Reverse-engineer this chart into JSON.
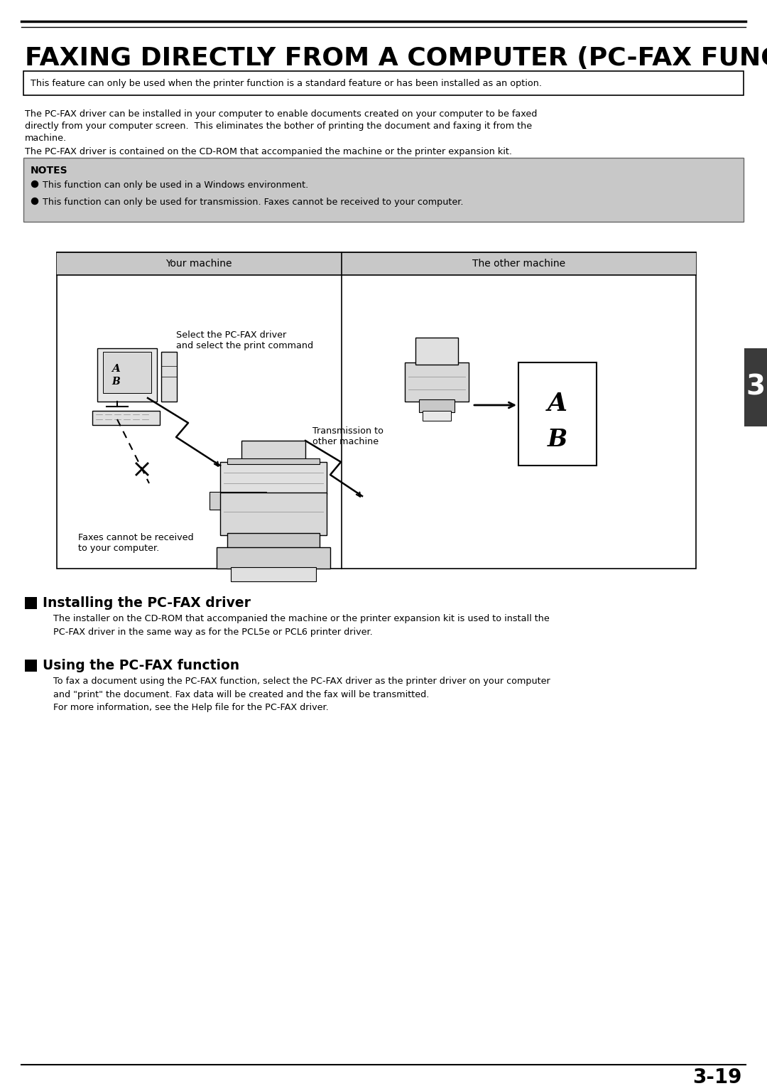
{
  "title": "FAXING DIRECTLY FROM A COMPUTER (PC-FAX FUNCTION)",
  "feature_note": "This feature can only be used when the printer function is a standard feature or has been installed as an option.",
  "body_para1": "The PC-FAX driver can be installed in your computer to enable documents created on your computer to be faxed",
  "body_para2": "directly from your computer screen.  This eliminates the bother of printing the document and faxing it from the",
  "body_para3": "machine.",
  "body_para4": "The PC-FAX driver is contained on the CD-ROM that accompanied the machine or the printer expansion kit.",
  "notes_title": "NOTES",
  "notes_item1": "This function can only be used in a Windows environment.",
  "notes_item2": "This function can only be used for transmission. Faxes cannot be received to your computer.",
  "diagram_header_left": "Your machine",
  "diagram_header_right": "The other machine",
  "diagram_label_select": "Select the PC-FAX driver\nand select the print command",
  "diagram_label_trans": "Transmission to\nother machine",
  "diagram_label_faxno": "Faxes cannot be received\nto your computer.",
  "section1_title": "Installing the PC-FAX driver",
  "section1_line1": "The installer on the CD-ROM that accompanied the machine or the printer expansion kit is used to install the",
  "section1_line2": "PC-FAX driver in the same way as for the PCL5e or PCL6 printer driver.",
  "section2_title": "Using the PC-FAX function",
  "section2_line1": "To fax a document using the PC-FAX function, select the PC-FAX driver as the printer driver on your computer",
  "section2_line2": "and \"print\" the document. Fax data will be created and the fax will be transmitted.",
  "section2_line3": "For more information, see the Help file for the PC-FAX driver.",
  "page_number": "3-19",
  "tab_number": "3",
  "bg_color": "#ffffff",
  "notes_bg": "#c8c8c8",
  "diagram_header_bg": "#c8c8c8",
  "tab_bg": "#3a3a3a"
}
